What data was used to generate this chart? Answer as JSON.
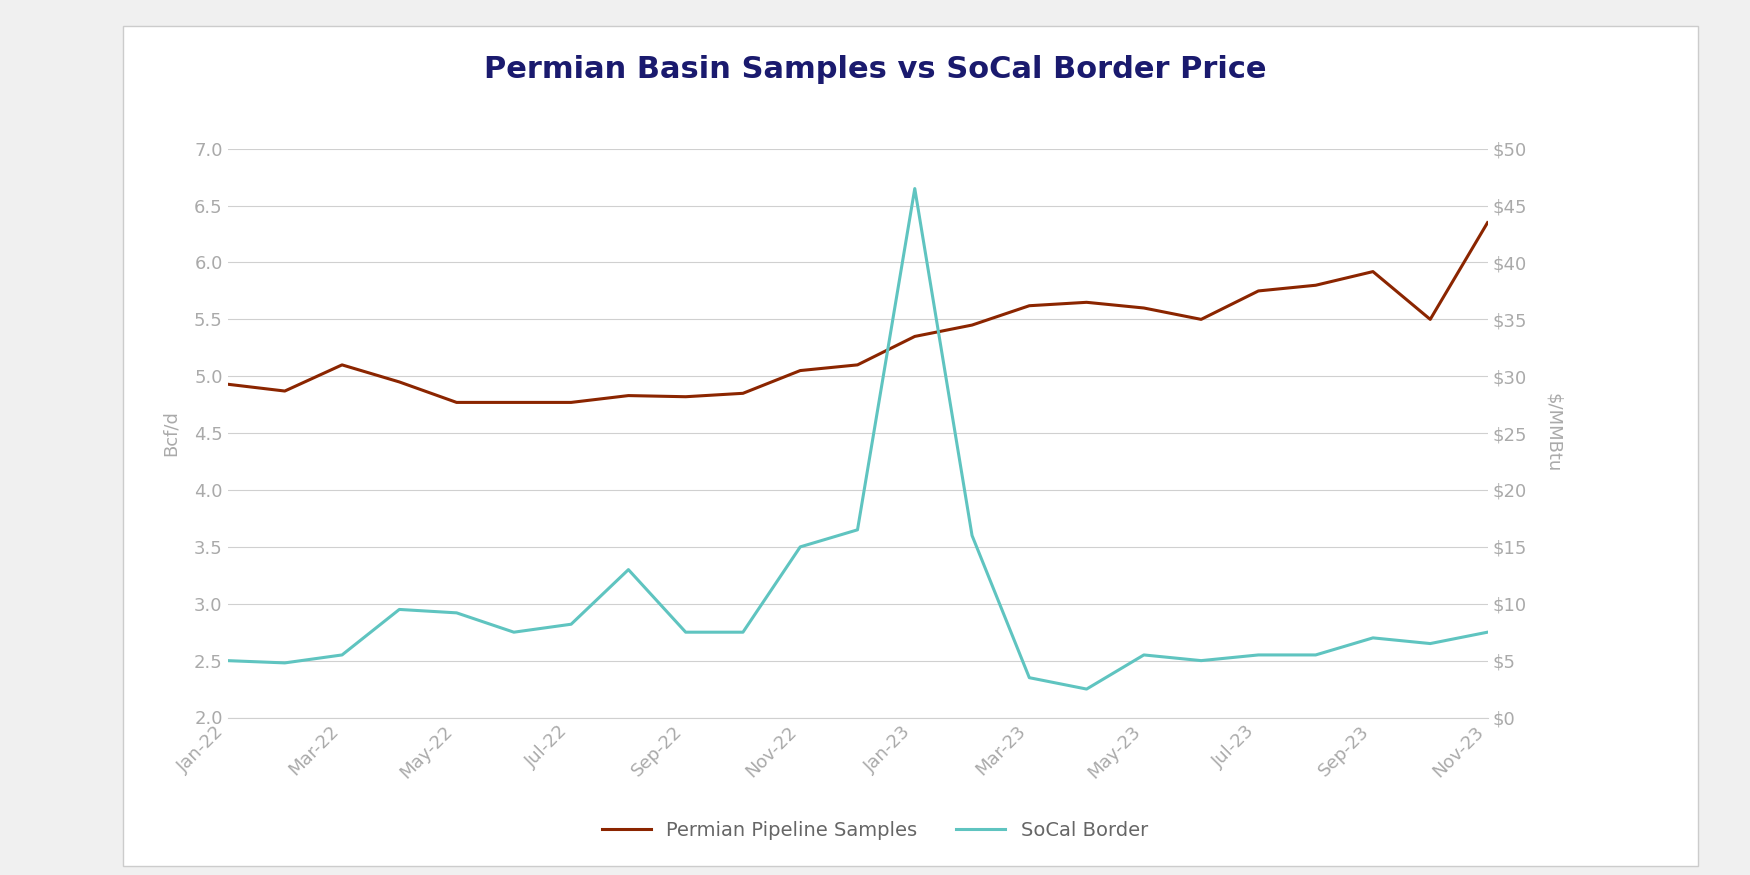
{
  "title": "Permian Basin Samples vs SoCal Border Price",
  "title_color": "#1a1a6e",
  "title_fontsize": 22,
  "background_color": "#f0f0f0",
  "plot_bg_color": "#ffffff",
  "card_color": "#ffffff",
  "x_labels": [
    "Jan-22",
    "Mar-22",
    "May-22",
    "Jul-22",
    "Sep-22",
    "Nov-22",
    "Jan-23",
    "Mar-23",
    "May-23",
    "Jul-23",
    "Sep-23",
    "Nov-23"
  ],
  "permian_x": [
    0,
    1,
    2,
    3,
    4,
    5,
    6,
    7,
    8,
    9,
    10,
    11,
    12,
    13,
    14,
    15,
    16,
    17,
    18,
    19,
    20,
    21,
    22
  ],
  "permian_y": [
    4.93,
    4.87,
    5.1,
    4.95,
    4.77,
    4.77,
    4.77,
    4.83,
    4.82,
    4.85,
    5.05,
    5.1,
    5.35,
    5.45,
    5.62,
    5.65,
    5.6,
    5.5,
    5.75,
    5.8,
    5.92,
    5.5,
    6.35
  ],
  "socal_x": [
    0,
    1,
    2,
    3,
    4,
    5,
    6,
    7,
    8,
    9,
    10,
    11,
    12,
    13,
    14,
    15,
    16,
    17,
    18,
    19,
    20,
    21,
    22
  ],
  "socal_y_mmbtu": [
    5.0,
    4.8,
    5.5,
    9.5,
    9.2,
    7.5,
    8.2,
    13.0,
    7.5,
    7.5,
    15.0,
    16.5,
    46.5,
    16.0,
    3.5,
    2.5,
    5.5,
    5.0,
    5.5,
    5.5,
    7.0,
    6.5,
    7.5
  ],
  "permian_color": "#8B2500",
  "socal_color": "#5fc4c0",
  "left_ylim": [
    2.0,
    7.0
  ],
  "right_ylim": [
    0,
    50
  ],
  "left_yticks": [
    2.0,
    2.5,
    3.0,
    3.5,
    4.0,
    4.5,
    5.0,
    5.5,
    6.0,
    6.5,
    7.0
  ],
  "right_yticks": [
    0,
    5,
    10,
    15,
    20,
    25,
    30,
    35,
    40,
    45,
    50
  ],
  "right_ytick_labels": [
    "$0",
    "$5",
    "$10",
    "$15",
    "$20",
    "$25",
    "$30",
    "$35",
    "$40",
    "$45",
    "$50"
  ],
  "ylabel_left": "Bcf/d",
  "ylabel_right": "$/MMBtu",
  "legend_labels": [
    "Permian Pipeline Samples",
    "SoCal Border"
  ],
  "line_width": 2.2,
  "grid_color": "#d0d0d0",
  "tick_color": "#aaaaaa",
  "label_color": "#aaaaaa"
}
